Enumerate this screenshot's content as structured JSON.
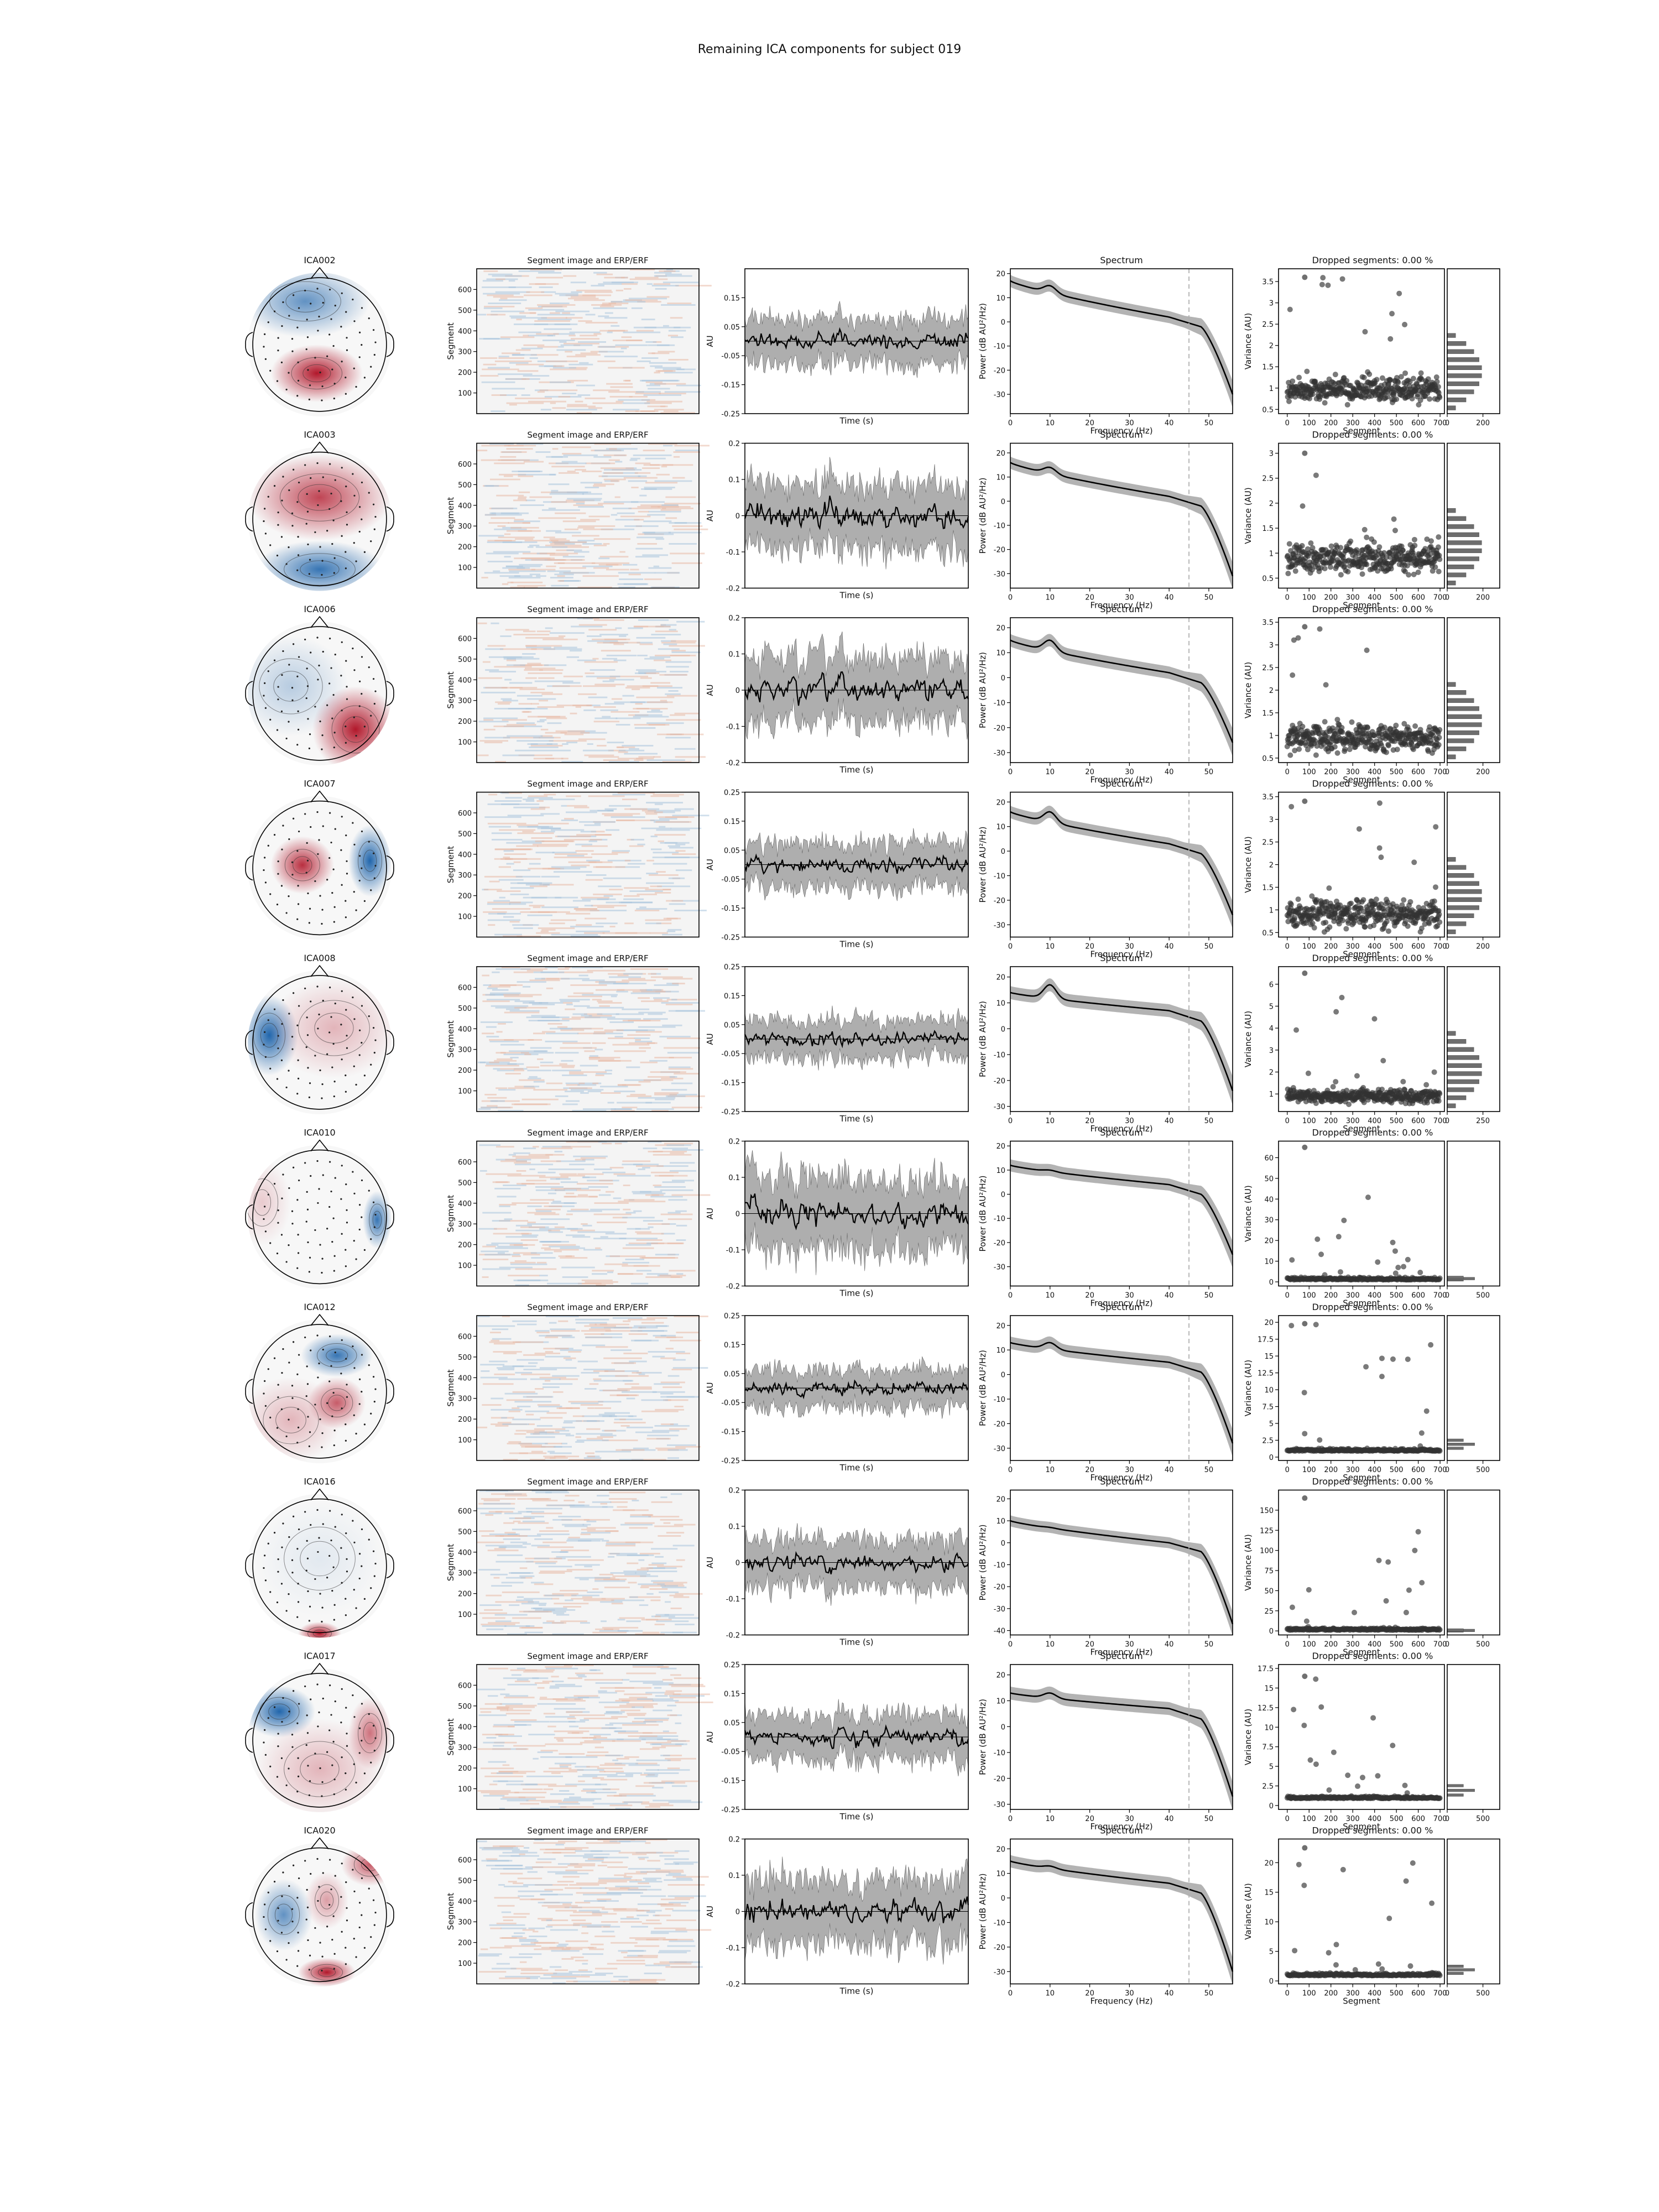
{
  "figure_title": "Remaining ICA components for subject 019",
  "panel_titles": {
    "image": "Segment image and ERP/ERF",
    "spectrum": "Spectrum",
    "dropped_prefix": "Dropped segments: ",
    "dropped_value": "0.00 %"
  },
  "axis_labels": {
    "segment": "Segment",
    "time": "Time (s)",
    "au": "AU",
    "frequency": "Frequency (Hz)",
    "power": "Power (dB AU²/Hz)",
    "variance": "Variance (AU)"
  },
  "colors": {
    "red": "#b2182b",
    "blue": "#2166ac",
    "trace": "#000000",
    "band": "#a6a6a6",
    "scatter": "#333333",
    "hist": "#6e6e6e",
    "dashed": "#b0b0b0"
  },
  "chart_data": {
    "type": "ica_component_report",
    "title": "Remaining ICA components for subject 019",
    "segments_range": [
      0,
      700
    ],
    "spectrum_x": {
      "ticks": [
        0,
        10,
        20,
        30,
        40,
        50
      ],
      "xlim": [
        0,
        56
      ],
      "cutoff_hz": 45
    },
    "erp_time_label": "Time (s)",
    "components": [
      {
        "name": "ICA002",
        "topomap": {
          "blobs": [
            {
              "x": 0.48,
              "y": 0.7,
              "rx": 0.32,
              "ry": 0.2,
              "sign": 1,
              "strength": 1.0
            },
            {
              "x": 0.4,
              "y": 0.2,
              "rx": 0.45,
              "ry": 0.25,
              "sign": -1,
              "strength": 0.7
            }
          ]
        },
        "erp_ylim": [
          -0.25,
          0.25
        ],
        "erp_yticks": [
          -0.25,
          -0.15,
          -0.05,
          0.05,
          0.15
        ],
        "erp_amp": 0.07,
        "spectrum_yticks": [
          -30,
          -20,
          -10,
          0,
          10,
          20
        ],
        "spectrum_ylim": [
          -38,
          22
        ],
        "spectrum": {
          "start": 17,
          "alpha_peak": 13,
          "at40": 2,
          "end": -30
        },
        "var_yticks": [
          0.5,
          1.0,
          1.5,
          2.0,
          2.5,
          3.0,
          3.5
        ],
        "var_ylim": [
          0.4,
          3.8
        ],
        "var_median": 0.95,
        "var_max": 3.6,
        "hist_xticks": [
          0,
          200
        ]
      },
      {
        "name": "ICA003",
        "topomap": {
          "blobs": [
            {
              "x": 0.5,
              "y": 0.35,
              "rx": 0.5,
              "ry": 0.3,
              "sign": 1,
              "strength": 0.8
            },
            {
              "x": 0.5,
              "y": 0.85,
              "rx": 0.45,
              "ry": 0.2,
              "sign": -1,
              "strength": 0.9
            }
          ]
        },
        "erp_ylim": [
          -0.2,
          0.2
        ],
        "erp_yticks": [
          -0.2,
          -0.1,
          0.0,
          0.1,
          0.2
        ],
        "erp_amp": 0.08,
        "spectrum_yticks": [
          -30,
          -20,
          -10,
          0,
          10,
          20
        ],
        "spectrum_ylim": [
          -36,
          24
        ],
        "spectrum": {
          "start": 16,
          "alpha_peak": 12,
          "at40": 2,
          "end": -31
        },
        "var_yticks": [
          0.5,
          1.0,
          1.5,
          2.0,
          2.5,
          3.0
        ],
        "var_ylim": [
          0.3,
          3.2
        ],
        "var_median": 0.9,
        "var_max": 3.0,
        "hist_xticks": [
          0,
          200
        ]
      },
      {
        "name": "ICA006",
        "topomap": {
          "blobs": [
            {
              "x": 0.75,
              "y": 0.75,
              "rx": 0.3,
              "ry": 0.3,
              "sign": 1,
              "strength": 1.0
            },
            {
              "x": 0.3,
              "y": 0.45,
              "rx": 0.4,
              "ry": 0.35,
              "sign": -1,
              "strength": 0.3
            }
          ]
        },
        "erp_ylim": [
          -0.2,
          0.2
        ],
        "erp_yticks": [
          -0.2,
          -0.1,
          0.0,
          0.1,
          0.2
        ],
        "erp_amp": 0.08,
        "spectrum_yticks": [
          -30,
          -20,
          -10,
          0,
          10,
          20
        ],
        "spectrum_ylim": [
          -34,
          24
        ],
        "spectrum": {
          "start": 15,
          "alpha_peak": 13,
          "at40": 2,
          "end": -26
        },
        "var_yticks": [
          0.5,
          1.0,
          1.5,
          2.0,
          2.5,
          3.0,
          3.5
        ],
        "var_ylim": [
          0.4,
          3.6
        ],
        "var_median": 0.95,
        "var_max": 3.4,
        "hist_xticks": [
          0,
          200
        ]
      },
      {
        "name": "ICA007",
        "topomap": {
          "blobs": [
            {
              "x": 0.38,
              "y": 0.48,
              "rx": 0.22,
              "ry": 0.2,
              "sign": 1,
              "strength": 0.9
            },
            {
              "x": 0.85,
              "y": 0.45,
              "rx": 0.15,
              "ry": 0.25,
              "sign": -1,
              "strength": 1.0
            }
          ]
        },
        "erp_ylim": [
          -0.25,
          0.25
        ],
        "erp_yticks": [
          -0.25,
          -0.15,
          -0.05,
          0.05,
          0.15,
          0.25
        ],
        "erp_amp": 0.07,
        "spectrum_yticks": [
          -30,
          -20,
          -10,
          0,
          10,
          20
        ],
        "spectrum_ylim": [
          -35,
          24
        ],
        "spectrum": {
          "start": 16,
          "alpha_peak": 14,
          "at40": 3,
          "end": -26
        },
        "var_yticks": [
          0.5,
          1.0,
          1.5,
          2.0,
          2.5,
          3.0,
          3.5
        ],
        "var_ylim": [
          0.4,
          3.6
        ],
        "var_median": 0.9,
        "var_max": 3.4,
        "hist_xticks": [
          0,
          200
        ]
      },
      {
        "name": "ICA008",
        "topomap": {
          "blobs": [
            {
              "x": 0.15,
              "y": 0.45,
              "rx": 0.2,
              "ry": 0.28,
              "sign": -1,
              "strength": 1.0
            },
            {
              "x": 0.6,
              "y": 0.4,
              "rx": 0.45,
              "ry": 0.35,
              "sign": 1,
              "strength": 0.3
            }
          ]
        },
        "erp_ylim": [
          -0.25,
          0.25
        ],
        "erp_yticks": [
          -0.25,
          -0.15,
          -0.05,
          0.05,
          0.15,
          0.25
        ],
        "erp_amp": 0.06,
        "spectrum_yticks": [
          -30,
          -20,
          -10,
          0,
          10,
          20
        ],
        "spectrum_ylim": [
          -32,
          24
        ],
        "spectrum": {
          "start": 14,
          "alpha_peak": 15,
          "at40": 7,
          "end": -24
        },
        "var_yticks": [
          1,
          2,
          3,
          4,
          5,
          6
        ],
        "var_ylim": [
          0.2,
          6.8
        ],
        "var_median": 0.9,
        "var_max": 6.5,
        "hist_xticks": [
          0,
          250
        ]
      },
      {
        "name": "ICA010",
        "topomap": {
          "blobs": [
            {
              "x": 0.9,
              "y": 0.52,
              "rx": 0.1,
              "ry": 0.2,
              "sign": -1,
              "strength": 0.9
            },
            {
              "x": 0.1,
              "y": 0.4,
              "rx": 0.2,
              "ry": 0.3,
              "sign": 1,
              "strength": 0.2
            }
          ]
        },
        "erp_ylim": [
          -0.2,
          0.2
        ],
        "erp_yticks": [
          -0.2,
          -0.1,
          0.0,
          0.1,
          0.2
        ],
        "erp_amp": 0.09,
        "spectrum_yticks": [
          -30,
          -20,
          -10,
          0,
          10,
          20
        ],
        "spectrum_ylim": [
          -38,
          22
        ],
        "spectrum": {
          "start": 12,
          "alpha_peak": 8,
          "at40": 4,
          "end": -25
        },
        "var_yticks": [
          0,
          10,
          20,
          30,
          40,
          50,
          60
        ],
        "var_ylim": [
          -2,
          68
        ],
        "var_median": 1.0,
        "var_max": 65,
        "hist_xticks": [
          0,
          500
        ]
      },
      {
        "name": "ICA012",
        "topomap": {
          "blobs": [
            {
              "x": 0.62,
              "y": 0.25,
              "rx": 0.25,
              "ry": 0.15,
              "sign": -1,
              "strength": 0.9
            },
            {
              "x": 0.62,
              "y": 0.58,
              "rx": 0.2,
              "ry": 0.18,
              "sign": 1,
              "strength": 0.7
            },
            {
              "x": 0.3,
              "y": 0.7,
              "rx": 0.35,
              "ry": 0.3,
              "sign": 1,
              "strength": 0.3
            }
          ]
        },
        "erp_ylim": [
          -0.25,
          0.25
        ],
        "erp_yticks": [
          -0.25,
          -0.15,
          -0.05,
          0.05,
          0.15,
          0.25
        ],
        "erp_amp": 0.06,
        "spectrum_yticks": [
          -30,
          -20,
          -10,
          0,
          10,
          20
        ],
        "spectrum_ylim": [
          -35,
          24
        ],
        "spectrum": {
          "start": 13,
          "alpha_peak": 11,
          "at40": 5,
          "end": -28
        },
        "var_yticks": [
          0.0,
          2.5,
          5.0,
          7.5,
          10.0,
          12.5,
          15.0,
          17.5,
          20.0
        ],
        "var_ylim": [
          -0.5,
          21
        ],
        "var_median": 0.9,
        "var_max": 19.8,
        "hist_xticks": [
          0,
          500
        ]
      },
      {
        "name": "ICA016",
        "topomap": {
          "blobs": [
            {
              "x": 0.5,
              "y": 0.97,
              "rx": 0.15,
              "ry": 0.08,
              "sign": 1,
              "strength": 1.0
            },
            {
              "x": 0.5,
              "y": 0.45,
              "rx": 0.45,
              "ry": 0.4,
              "sign": -1,
              "strength": 0.1
            }
          ]
        },
        "erp_ylim": [
          -0.2,
          0.2
        ],
        "erp_yticks": [
          -0.2,
          -0.1,
          0.0,
          0.1,
          0.2
        ],
        "erp_amp": 0.06,
        "spectrum_yticks": [
          -40,
          -30,
          -20,
          -10,
          0,
          10,
          20
        ],
        "spectrum_ylim": [
          -42,
          24
        ],
        "spectrum": {
          "start": 10,
          "alpha_peak": 5,
          "at40": 0,
          "end": -37
        },
        "var_yticks": [
          0,
          25,
          50,
          75,
          100,
          125,
          150
        ],
        "var_ylim": [
          -5,
          175
        ],
        "var_median": 1.0,
        "var_max": 165,
        "hist_xticks": [
          0,
          500
        ]
      },
      {
        "name": "ICA017",
        "topomap": {
          "blobs": [
            {
              "x": 0.22,
              "y": 0.3,
              "rx": 0.25,
              "ry": 0.18,
              "sign": -1,
              "strength": 1.0
            },
            {
              "x": 0.85,
              "y": 0.45,
              "rx": 0.15,
              "ry": 0.25,
              "sign": 1,
              "strength": 0.6
            },
            {
              "x": 0.5,
              "y": 0.7,
              "rx": 0.45,
              "ry": 0.35,
              "sign": 1,
              "strength": 0.3
            }
          ]
        },
        "erp_ylim": [
          -0.25,
          0.25
        ],
        "erp_yticks": [
          -0.25,
          -0.15,
          -0.05,
          0.05,
          0.15,
          0.25
        ],
        "erp_amp": 0.07,
        "spectrum_yticks": [
          -30,
          -20,
          -10,
          0,
          10,
          20
        ],
        "spectrum_ylim": [
          -32,
          24
        ],
        "spectrum": {
          "start": 13,
          "alpha_peak": 11,
          "at40": 7,
          "end": -27
        },
        "var_yticks": [
          0.0,
          2.5,
          5.0,
          7.5,
          10.0,
          12.5,
          15.0,
          17.5
        ],
        "var_ylim": [
          -0.5,
          18
        ],
        "var_median": 0.9,
        "var_max": 16.5,
        "hist_xticks": [
          0,
          500
        ]
      },
      {
        "name": "ICA020",
        "topomap": {
          "blobs": [
            {
              "x": 0.55,
              "y": 0.9,
              "rx": 0.2,
              "ry": 0.1,
              "sign": 1,
              "strength": 1.0
            },
            {
              "x": 0.25,
              "y": 0.5,
              "rx": 0.2,
              "ry": 0.25,
              "sign": -1,
              "strength": 0.7
            },
            {
              "x": 0.85,
              "y": 0.15,
              "rx": 0.2,
              "ry": 0.15,
              "sign": 1,
              "strength": 0.7
            },
            {
              "x": 0.55,
              "y": 0.4,
              "rx": 0.15,
              "ry": 0.2,
              "sign": 1,
              "strength": 0.4
            }
          ]
        },
        "erp_ylim": [
          -0.2,
          0.2
        ],
        "erp_yticks": [
          -0.2,
          -0.1,
          0.0,
          0.1,
          0.2
        ],
        "erp_amp": 0.08,
        "spectrum_yticks": [
          -30,
          -20,
          -10,
          0,
          10,
          20
        ],
        "spectrum_ylim": [
          -35,
          24
        ],
        "spectrum": {
          "start": 15,
          "alpha_peak": 11,
          "at40": 6,
          "end": -30
        },
        "var_yticks": [
          0,
          5,
          10,
          15,
          20
        ],
        "var_ylim": [
          -0.5,
          24
        ],
        "var_median": 0.9,
        "var_max": 22.5,
        "hist_xticks": [
          0,
          500
        ]
      }
    ]
  }
}
